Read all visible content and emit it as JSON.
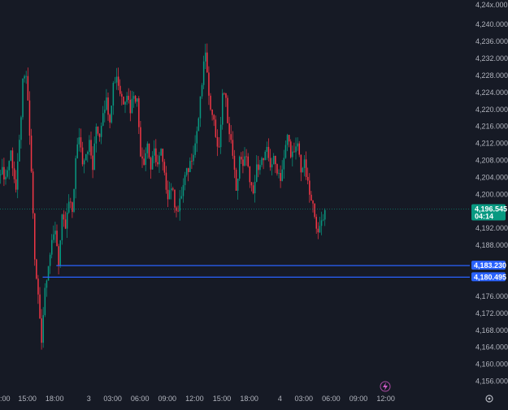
{
  "chart_data": {
    "type": "candlestick",
    "symbol_partial": "4,24x.000",
    "ylim": [
      4154,
      4245
    ],
    "y_ticks": [
      "4,240.000",
      "4,236.000",
      "4,232.000",
      "4,228.000",
      "4,224.000",
      "4,220.000",
      "4,216.000",
      "4,212.000",
      "4,208.000",
      "4,204.000",
      "4,200.000",
      "4,192.000",
      "4,188.000",
      "4,176.000",
      "4,172.000",
      "4,168.000",
      "4,164.000",
      "4,160.000",
      "4,156.000"
    ],
    "y_tick_values": [
      4240,
      4236,
      4232,
      4228,
      4224,
      4220,
      4216,
      4212,
      4208,
      4204,
      4200,
      4192,
      4188,
      4176,
      4172,
      4168,
      4164,
      4160,
      4156
    ],
    "x_ticks": [
      ":00",
      "15:00",
      "18:00",
      "3",
      "03:00",
      "06:00",
      "09:00",
      "12:00",
      "15:00",
      "18:00",
      "4",
      "03:00",
      "06:00",
      "09:00",
      "12:00"
    ],
    "x_tick_index": [
      0,
      16,
      32,
      52,
      66,
      82,
      98,
      114,
      130,
      146,
      164,
      178,
      194,
      210,
      226
    ],
    "current_price": {
      "value": 4196.545,
      "label": "4,196.545",
      "countdown": "04:14",
      "color": "#089981"
    },
    "horizontal_lines": [
      {
        "value": 4183.23,
        "label": "4,183.230",
        "start_index": 33,
        "color": "#2962ff"
      },
      {
        "value": 4180.495,
        "label": "4,180.495",
        "start_index": 25,
        "color": "#2962ff"
      }
    ],
    "colors": {
      "up": "#089981",
      "down": "#f23645",
      "background": "#161a25"
    },
    "path": [
      [
        0,
        4206
      ],
      [
        3,
        4204
      ],
      [
        6,
        4210
      ],
      [
        9,
        4201
      ],
      [
        11,
        4212
      ],
      [
        13,
        4226
      ],
      [
        15,
        4228
      ],
      [
        17,
        4214
      ],
      [
        19,
        4196
      ],
      [
        20,
        4184
      ],
      [
        22,
        4176
      ],
      [
        24,
        4166
      ],
      [
        26,
        4178
      ],
      [
        28,
        4184
      ],
      [
        30,
        4188
      ],
      [
        32,
        4192
      ],
      [
        34,
        4184
      ],
      [
        36,
        4194
      ],
      [
        38,
        4192
      ],
      [
        40,
        4198
      ],
      [
        42,
        4196
      ],
      [
        44,
        4208
      ],
      [
        46,
        4214
      ],
      [
        48,
        4208
      ],
      [
        50,
        4210
      ],
      [
        52,
        4212
      ],
      [
        54,
        4206
      ],
      [
        56,
        4216
      ],
      [
        58,
        4214
      ],
      [
        60,
        4220
      ],
      [
        62,
        4222
      ],
      [
        64,
        4218
      ],
      [
        66,
        4226
      ],
      [
        68,
        4228
      ],
      [
        70,
        4224
      ],
      [
        72,
        4222
      ],
      [
        74,
        4224
      ],
      [
        76,
        4220
      ],
      [
        78,
        4224
      ],
      [
        80,
        4222
      ],
      [
        82,
        4210
      ],
      [
        84,
        4208
      ],
      [
        86,
        4212
      ],
      [
        88,
        4206
      ],
      [
        90,
        4210
      ],
      [
        92,
        4207
      ],
      [
        94,
        4210
      ],
      [
        96,
        4204
      ],
      [
        98,
        4200
      ],
      [
        100,
        4202
      ],
      [
        102,
        4198
      ],
      [
        104,
        4196
      ],
      [
        106,
        4200
      ],
      [
        108,
        4204
      ],
      [
        110,
        4206
      ],
      [
        112,
        4209
      ],
      [
        114,
        4212
      ],
      [
        116,
        4218
      ],
      [
        118,
        4226
      ],
      [
        120,
        4234
      ],
      [
        122,
        4222
      ],
      [
        124,
        4220
      ],
      [
        126,
        4214
      ],
      [
        128,
        4210
      ],
      [
        130,
        4224
      ],
      [
        132,
        4222
      ],
      [
        134,
        4214
      ],
      [
        136,
        4210
      ],
      [
        138,
        4200
      ],
      [
        140,
        4209
      ],
      [
        142,
        4206
      ],
      [
        144,
        4210
      ],
      [
        146,
        4202
      ],
      [
        148,
        4200
      ],
      [
        150,
        4206
      ],
      [
        152,
        4208
      ],
      [
        154,
        4208
      ],
      [
        156,
        4210
      ],
      [
        158,
        4207
      ],
      [
        160,
        4208
      ],
      [
        162,
        4206
      ],
      [
        164,
        4204
      ],
      [
        166,
        4208
      ],
      [
        168,
        4214
      ],
      [
        170,
        4210
      ],
      [
        172,
        4209
      ],
      [
        174,
        4212
      ],
      [
        176,
        4206
      ],
      [
        178,
        4207
      ],
      [
        180,
        4202
      ],
      [
        182,
        4198
      ],
      [
        184,
        4196
      ],
      [
        186,
        4190
      ],
      [
        188,
        4194
      ],
      [
        190,
        4196
      ]
    ]
  },
  "icons": {
    "bottom_right": "settings-icon",
    "bottom_center": "lightning-icon"
  }
}
